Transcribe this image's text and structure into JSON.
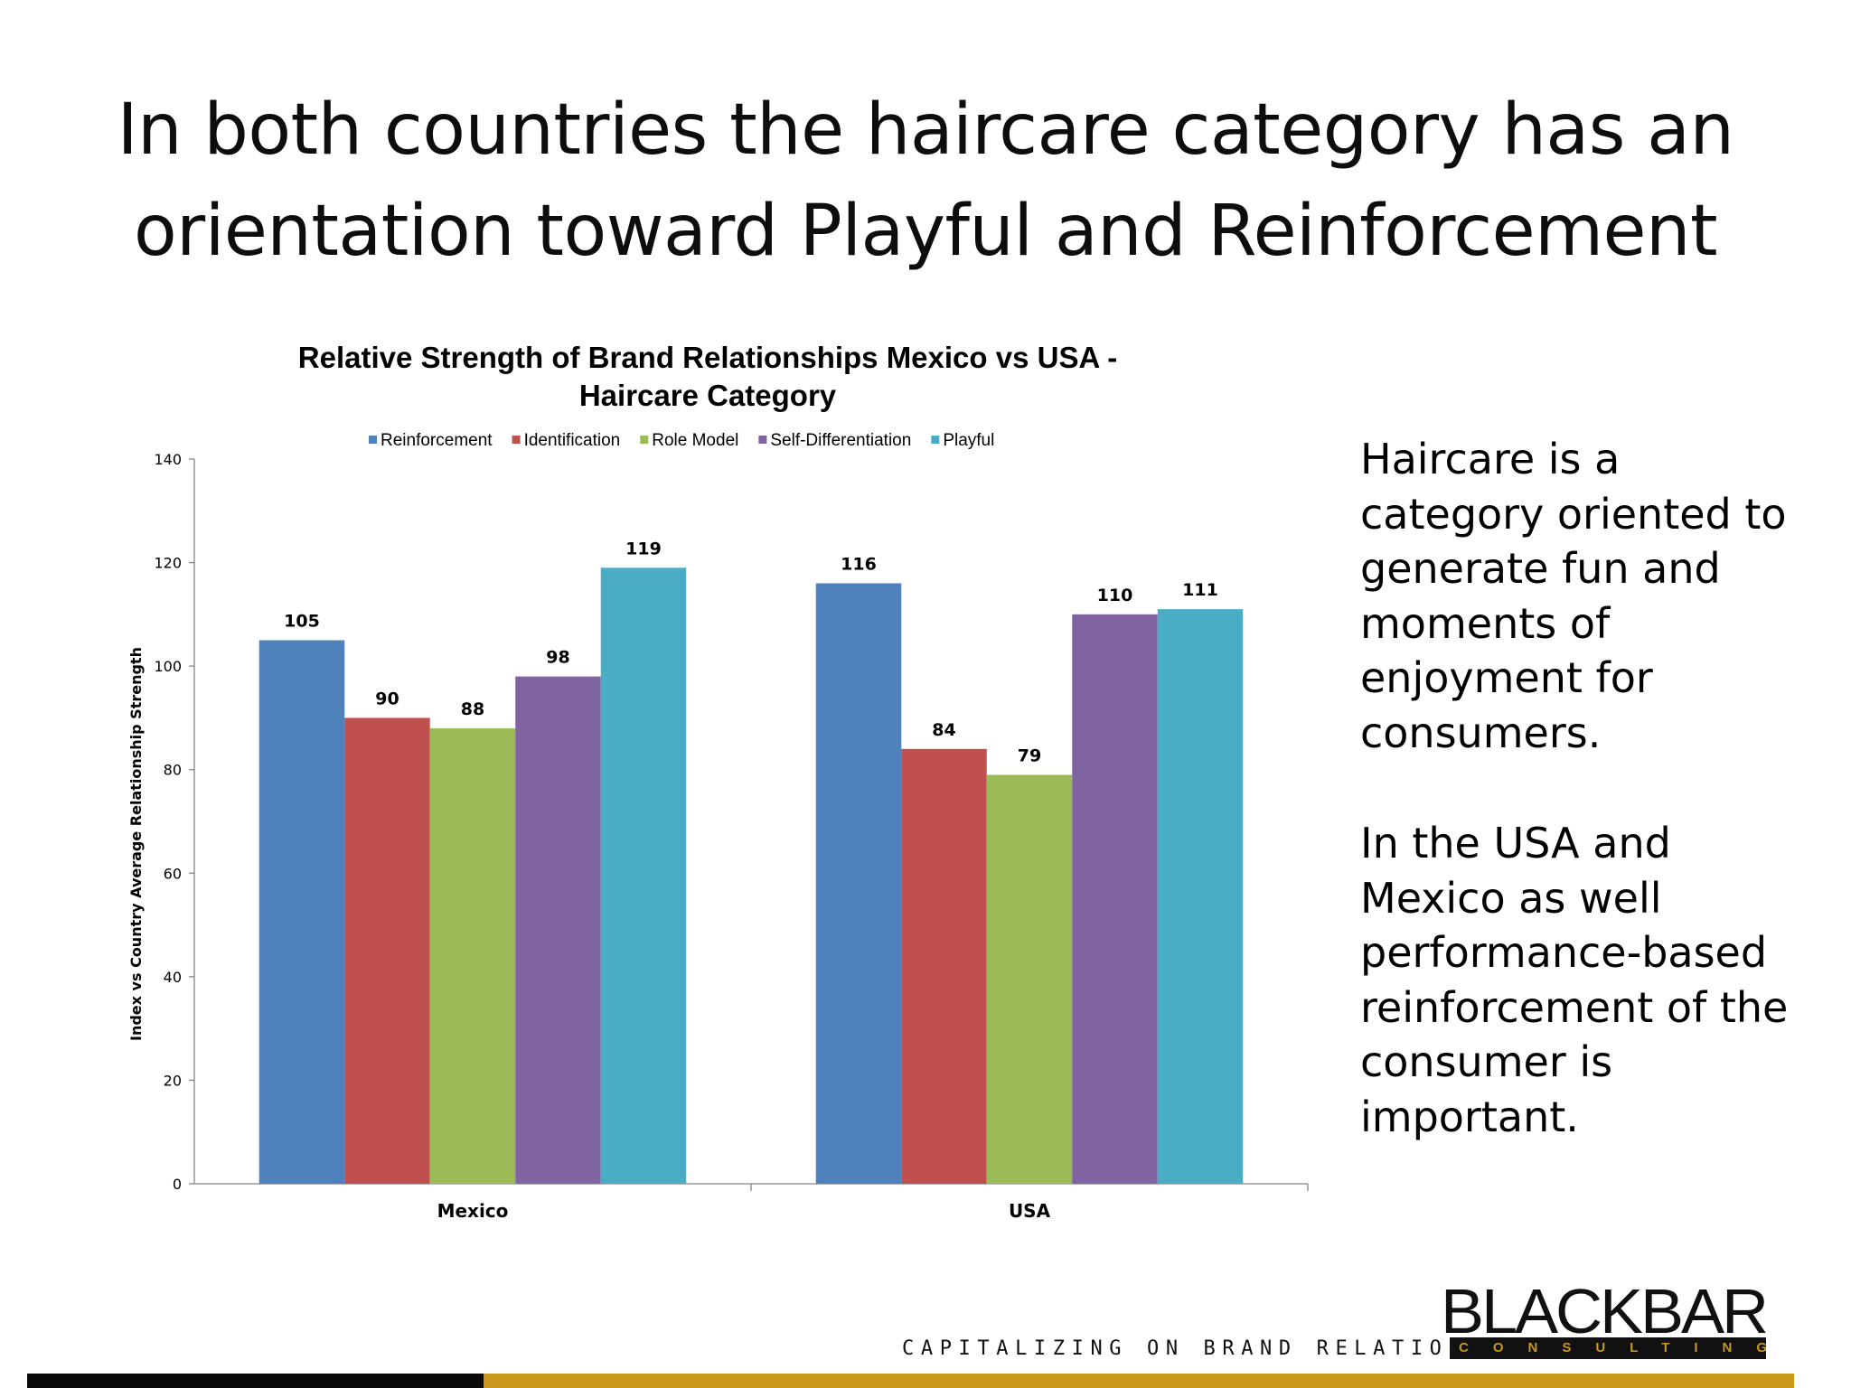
{
  "slide": {
    "title_line1": "In both countries the haircare category has an",
    "title_line2": "orientation toward Playful and Reinforcement",
    "side_para1": "Haircare is a category oriented to generate fun and moments of enjoyment for consumers.",
    "side_para2": "In the USA and Mexico as well performance-based reinforcement of the consumer is important.",
    "tagline": "CAPITALIZING ON BRAND RELATIONSHIPS.",
    "logo_main": "BLACKBAR",
    "logo_sub": "CONSULTING LLC"
  },
  "colors": {
    "reinforcement": "#4F81BD",
    "identification": "#C0504D",
    "role_model": "#9BBB59",
    "self_differentiation": "#8064A2",
    "playful": "#4BACC6",
    "footer_black": "#0a0a0a",
    "footer_gold": "#c9971c"
  },
  "chart_data": {
    "type": "bar",
    "title_line1": "Relative Strength of Brand Relationships Mexico vs USA -",
    "title_line2": "Haircare Category",
    "xlabel": "",
    "ylabel": "Index vs Country Average Relationship Strength",
    "categories": [
      "Mexico",
      "USA"
    ],
    "ylim": [
      0,
      140
    ],
    "yticks": [
      0,
      20,
      40,
      60,
      80,
      100,
      120,
      140
    ],
    "legend_position": "top",
    "series": [
      {
        "name": "Reinforcement",
        "color": "#4F81BD",
        "values": [
          105,
          116
        ]
      },
      {
        "name": "Identification",
        "color": "#C0504D",
        "values": [
          90,
          84
        ]
      },
      {
        "name": "Role Model",
        "color": "#9BBB59",
        "values": [
          88,
          79
        ]
      },
      {
        "name": "Self-Differentiation",
        "color": "#8064A2",
        "values": [
          98,
          110
        ]
      },
      {
        "name": "Playful",
        "color": "#4BACC6",
        "values": [
          119,
          111
        ]
      }
    ]
  }
}
